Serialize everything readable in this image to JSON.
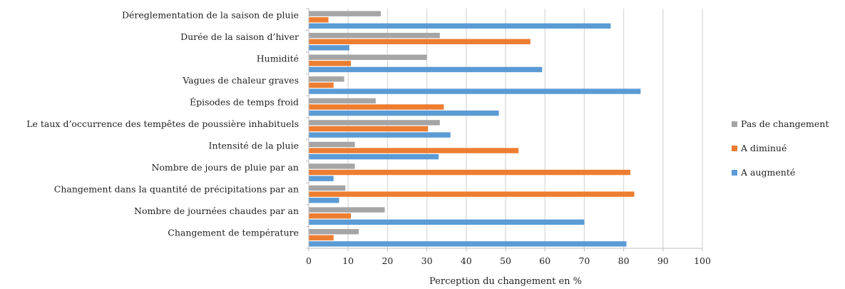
{
  "chart_data": {
    "type": "bar",
    "orientation": "horizontal",
    "categories": [
      "Déreglementation de la saison de pluie",
      "Durée de la saison d’hiver",
      "Humidité",
      "Vagues de chaleur graves",
      "Épisodes de temps froid",
      "Le taux d’occurrence des tempêtes de poussière inhabituels",
      "Intensité de la pluie",
      "Nombre de jours de pluie par an",
      "Changement dans la quantité de précipitations par an",
      "Nombre de journées chaudes par an",
      "Changement de température"
    ],
    "series": [
      {
        "name": "Pas de changement",
        "color": "#a5a5a5",
        "values": [
          18.3,
          33.3,
          30,
          9,
          17,
          33.3,
          11.7,
          11.7,
          9.3,
          19.3,
          12.7
        ]
      },
      {
        "name": "A diminué",
        "color": "#ed7d31",
        "values": [
          5,
          56.3,
          10.7,
          6.3,
          34.3,
          30.3,
          53.3,
          81.7,
          82.7,
          10.7,
          6.3
        ]
      },
      {
        "name": "A augmenté",
        "color": "#5b9bd5",
        "values": [
          76.7,
          10.3,
          59.3,
          84.3,
          48.3,
          36,
          33,
          6.3,
          7.7,
          70,
          80.7
        ]
      }
    ],
    "xlabel": "Perception du changement en %",
    "ylabel": "",
    "xlim": [
      0,
      100
    ],
    "xticks": [
      "0",
      "10",
      "20",
      "30",
      "40",
      "50",
      "60",
      "70",
      "80",
      "90",
      "100"
    ],
    "grid": true,
    "legend_position": "right"
  }
}
